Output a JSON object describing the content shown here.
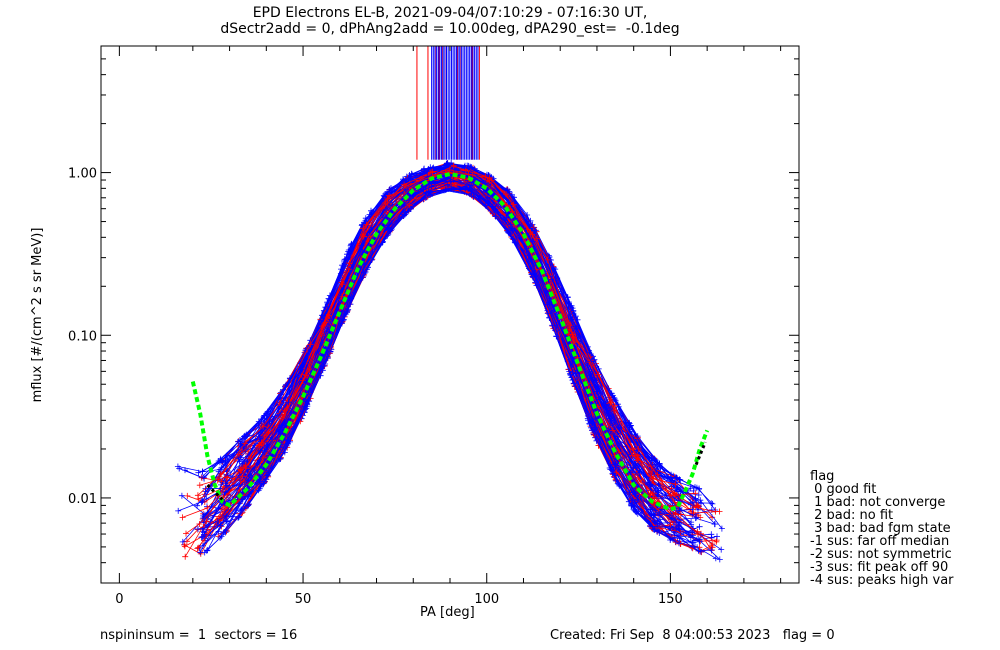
{
  "title_line1": "EPD Electrons EL-B, 2021-09-04/07:10:29 - 07:16:30 UT,",
  "title_line2": "dSectr2add = 0, dPhAng2add = 10.00deg, dPA290_est=  -0.1deg",
  "footer": {
    "left": "nspininsum =  1  sectors = 16",
    "right": "Created: Fri Sep  8 04:00:53 2023   flag = 0"
  },
  "legend": {
    "title": "flag",
    "items": [
      " 0 good fit",
      " 1 bad: not converge",
      " 2 bad: no fit",
      " 3 bad: bad fgm state",
      "-1 sus: far off median",
      "-2 sus: not symmetric",
      "-3 sus: fit peak off 90",
      "-4 sus: peaks high var"
    ]
  },
  "colors": {
    "red": "#ff0000",
    "blue": "#0000ff",
    "green": "#00ff00",
    "black": "#000000"
  },
  "chart_data": {
    "type": "line",
    "xlabel": "PA [deg]",
    "ylabel": "mflux [#/(cm^2 s sr MeV)]",
    "xlim": [
      -5,
      185
    ],
    "ylim": [
      0.003,
      6.0
    ],
    "yscale": "log",
    "xticks": [
      0,
      50,
      100,
      150
    ],
    "xtick_labels": [
      "0",
      "50",
      "100",
      "150"
    ],
    "yticks": [
      0.01,
      0.1,
      1.0
    ],
    "ytick_labels": [
      "0.01",
      "0.10",
      "1.00"
    ],
    "series": [
      {
        "color": "green",
        "style": "dashed",
        "x": [
          20,
          22,
          24,
          26,
          28,
          30,
          35,
          40,
          45,
          50,
          55,
          60,
          65,
          70,
          75,
          80,
          85,
          90,
          95,
          100,
          105,
          110,
          115,
          120,
          125,
          130,
          135,
          140,
          145,
          150,
          152,
          154,
          156,
          158,
          160
        ],
        "y": [
          0.052,
          0.033,
          0.018,
          0.012,
          0.0095,
          0.009,
          0.0115,
          0.016,
          0.025,
          0.042,
          0.075,
          0.14,
          0.26,
          0.42,
          0.6,
          0.78,
          0.92,
          0.98,
          0.93,
          0.8,
          0.62,
          0.42,
          0.25,
          0.13,
          0.065,
          0.033,
          0.019,
          0.012,
          0.0095,
          0.0085,
          0.0088,
          0.011,
          0.014,
          0.02,
          0.026
        ]
      },
      {
        "name": "band",
        "color": "blue",
        "x": [
          15,
          20,
          25,
          30,
          35,
          40,
          45,
          50,
          55,
          60,
          65,
          70,
          75,
          80,
          85,
          90,
          95,
          100,
          105,
          110,
          115,
          120,
          125,
          130,
          135,
          140,
          145,
          150,
          155,
          160,
          165
        ],
        "y_low": [
          0.004,
          0.004,
          0.005,
          0.0065,
          0.009,
          0.013,
          0.019,
          0.032,
          0.058,
          0.11,
          0.2,
          0.33,
          0.48,
          0.62,
          0.74,
          0.8,
          0.75,
          0.62,
          0.46,
          0.31,
          0.17,
          0.085,
          0.042,
          0.022,
          0.013,
          0.0085,
          0.0065,
          0.0055,
          0.005,
          0.0045,
          0.004
        ],
        "y_high": [
          0.016,
          0.014,
          0.015,
          0.02,
          0.025,
          0.033,
          0.048,
          0.075,
          0.13,
          0.25,
          0.45,
          0.65,
          0.85,
          1.0,
          1.1,
          1.15,
          1.1,
          0.98,
          0.82,
          0.6,
          0.38,
          0.22,
          0.12,
          0.065,
          0.04,
          0.026,
          0.018,
          0.014,
          0.012,
          0.011,
          0.01
        ]
      }
    ],
    "spikes": {
      "red_x": [
        81,
        84,
        86,
        87,
        88,
        89,
        92,
        93,
        96,
        98
      ],
      "blue_x_range": [
        85,
        98
      ]
    }
  }
}
